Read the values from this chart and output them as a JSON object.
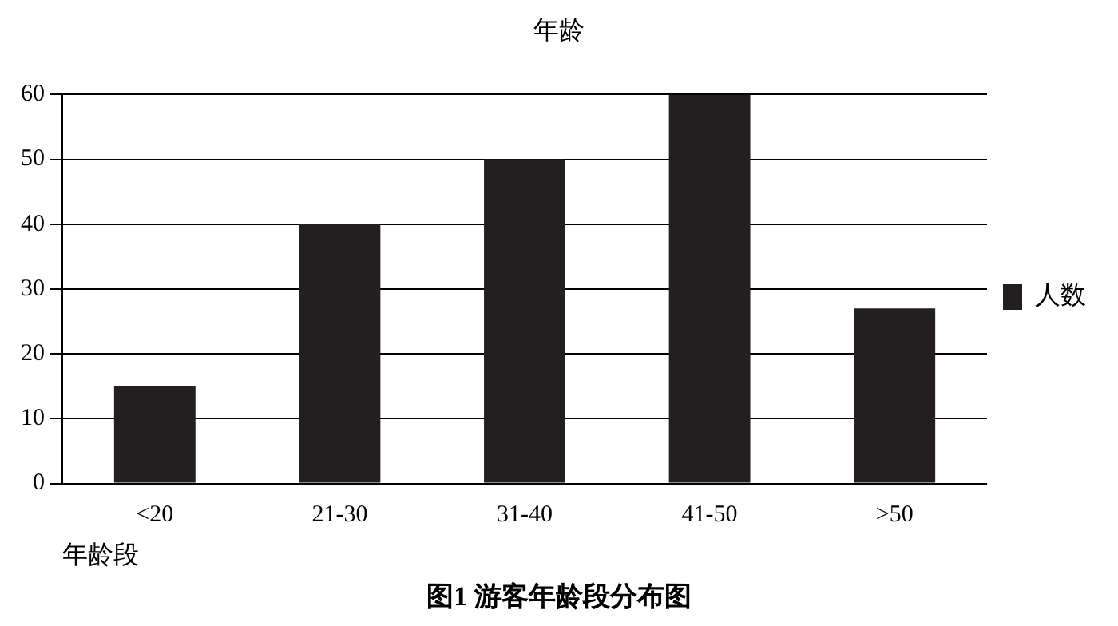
{
  "chart_data": {
    "type": "bar",
    "title": "年龄",
    "xlabel": "年龄段",
    "categories": [
      "<20",
      "21-30",
      "31-40",
      "41-50",
      ">50"
    ],
    "series": [
      {
        "name": "人数",
        "color": "#231f20",
        "values": [
          15,
          40,
          50,
          60,
          27
        ]
      }
    ],
    "ylim": [
      0,
      60
    ],
    "yticks": [
      0,
      10,
      20,
      30,
      40,
      50,
      60
    ],
    "grid": "y",
    "legend": "right",
    "annotations": [
      "图1  游客年龄段分布图"
    ]
  }
}
